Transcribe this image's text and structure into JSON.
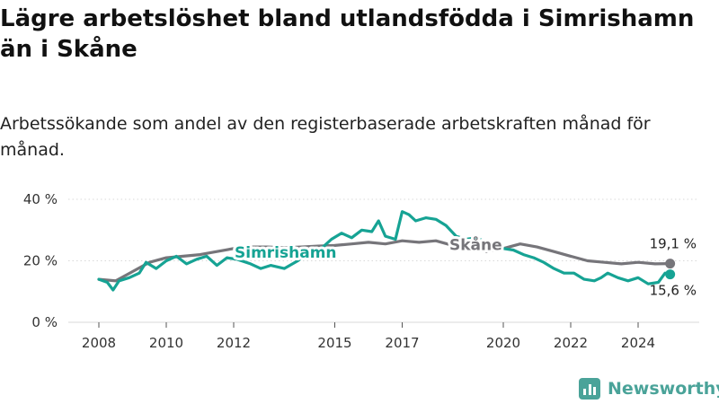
{
  "title": "Lägre arbetslöshet bland utlandsfödda i Simrishamn än i Skåne",
  "subtitle": "Arbetssökande som andel av den registerbaserade arbetskraften månad för månad.",
  "brand": {
    "name": "Newsworthy",
    "icon": "newsworthy-bar-chart-icon",
    "color": "#4aa399"
  },
  "chart_data": {
    "type": "line",
    "xlim": [
      2008,
      2025
    ],
    "ylim": [
      0,
      40
    ],
    "y_ticks": [
      {
        "value": 0,
        "label": "0 %"
      },
      {
        "value": 20,
        "label": "20 %"
      },
      {
        "value": 40,
        "label": "40 %"
      }
    ],
    "x_ticks": [
      {
        "value": 2008,
        "label": "2008"
      },
      {
        "value": 2010,
        "label": "2010"
      },
      {
        "value": 2012,
        "label": "2012"
      },
      {
        "value": 2015,
        "label": "2015"
      },
      {
        "value": 2017,
        "label": "2017"
      },
      {
        "value": 2020,
        "label": "2020"
      },
      {
        "value": 2022,
        "label": "2022"
      },
      {
        "value": 2024,
        "label": "2024"
      }
    ],
    "grid": true,
    "series": [
      {
        "name": "Skåne",
        "color": "#76757a",
        "end_label": "19,1 %",
        "points": [
          [
            2008.0,
            14.0
          ],
          [
            2008.5,
            13.5
          ],
          [
            2009.0,
            16.5
          ],
          [
            2009.5,
            19.5
          ],
          [
            2010.0,
            21.0
          ],
          [
            2010.5,
            21.5
          ],
          [
            2011.0,
            22.0
          ],
          [
            2011.5,
            23.0
          ],
          [
            2012.0,
            24.0
          ],
          [
            2012.5,
            24.5
          ],
          [
            2013.0,
            24.5
          ],
          [
            2013.5,
            24.3
          ],
          [
            2014.0,
            24.5
          ],
          [
            2014.5,
            24.8
          ],
          [
            2015.0,
            25.0
          ],
          [
            2015.5,
            25.5
          ],
          [
            2016.0,
            26.0
          ],
          [
            2016.5,
            25.5
          ],
          [
            2017.0,
            26.5
          ],
          [
            2017.5,
            26.0
          ],
          [
            2018.0,
            26.5
          ],
          [
            2018.5,
            25.0
          ],
          [
            2019.0,
            24.0
          ],
          [
            2019.5,
            23.0
          ],
          [
            2020.0,
            24.0
          ],
          [
            2020.5,
            25.5
          ],
          [
            2021.0,
            24.5
          ],
          [
            2021.5,
            23.0
          ],
          [
            2022.0,
            21.5
          ],
          [
            2022.5,
            20.0
          ],
          [
            2023.0,
            19.5
          ],
          [
            2023.5,
            19.0
          ],
          [
            2024.0,
            19.5
          ],
          [
            2024.5,
            19.0
          ],
          [
            2024.95,
            19.1
          ]
        ]
      },
      {
        "name": "Simrishamn",
        "color": "#16a394",
        "end_label": "15,6 %",
        "points": [
          [
            2008.0,
            14.0
          ],
          [
            2008.25,
            13.0
          ],
          [
            2008.42,
            10.5
          ],
          [
            2008.6,
            13.5
          ],
          [
            2008.9,
            14.5
          ],
          [
            2009.2,
            16.0
          ],
          [
            2009.4,
            19.5
          ],
          [
            2009.7,
            17.5
          ],
          [
            2010.0,
            20.0
          ],
          [
            2010.3,
            21.5
          ],
          [
            2010.6,
            19.0
          ],
          [
            2010.9,
            20.5
          ],
          [
            2011.2,
            21.5
          ],
          [
            2011.5,
            18.5
          ],
          [
            2011.8,
            21.0
          ],
          [
            2012.1,
            20.5
          ],
          [
            2012.5,
            19.0
          ],
          [
            2012.8,
            17.5
          ],
          [
            2013.1,
            18.5
          ],
          [
            2013.5,
            17.5
          ],
          [
            2013.9,
            20.0
          ],
          [
            2014.2,
            22.5
          ],
          [
            2014.6,
            24.0
          ],
          [
            2014.9,
            27.0
          ],
          [
            2015.2,
            29.0
          ],
          [
            2015.5,
            27.5
          ],
          [
            2015.8,
            30.0
          ],
          [
            2016.1,
            29.5
          ],
          [
            2016.3,
            33.0
          ],
          [
            2016.5,
            28.0
          ],
          [
            2016.8,
            27.0
          ],
          [
            2017.0,
            36.0
          ],
          [
            2017.2,
            35.0
          ],
          [
            2017.4,
            33.0
          ],
          [
            2017.7,
            34.0
          ],
          [
            2018.0,
            33.5
          ],
          [
            2018.3,
            31.5
          ],
          [
            2018.6,
            28.0
          ],
          [
            2018.9,
            27.0
          ],
          [
            2019.2,
            27.5
          ],
          [
            2019.5,
            26.0
          ],
          [
            2019.8,
            24.5
          ],
          [
            2020.0,
            24.0
          ],
          [
            2020.3,
            23.5
          ],
          [
            2020.6,
            22.0
          ],
          [
            2020.9,
            21.0
          ],
          [
            2021.2,
            19.5
          ],
          [
            2021.5,
            17.5
          ],
          [
            2021.8,
            16.0
          ],
          [
            2022.1,
            16.0
          ],
          [
            2022.4,
            14.0
          ],
          [
            2022.7,
            13.5
          ],
          [
            2022.9,
            14.5
          ],
          [
            2023.1,
            16.0
          ],
          [
            2023.4,
            14.5
          ],
          [
            2023.7,
            13.5
          ],
          [
            2024.0,
            14.5
          ],
          [
            2024.3,
            12.5
          ],
          [
            2024.6,
            13.0
          ],
          [
            2024.8,
            16.0
          ],
          [
            2024.95,
            15.6
          ]
        ]
      }
    ]
  }
}
